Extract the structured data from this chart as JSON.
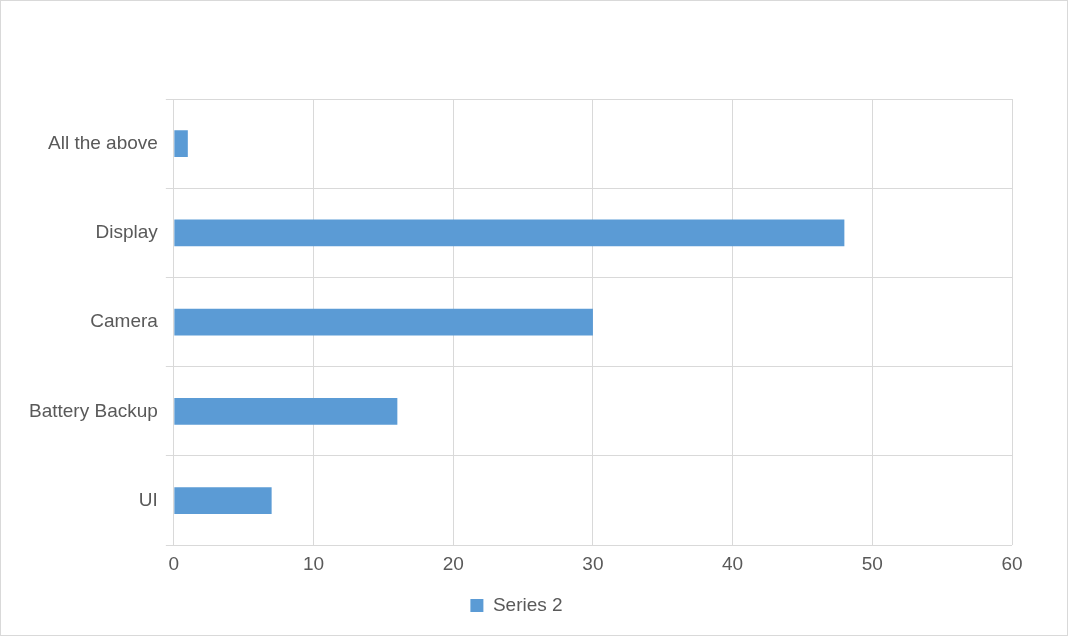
{
  "chart_data": {
    "type": "bar",
    "orientation": "horizontal",
    "categories": [
      "All the above",
      "Display",
      "Camera",
      "Battery Backup",
      "UI"
    ],
    "series": [
      {
        "name": "Series 2",
        "color": "#5b9bd5",
        "values": [
          1,
          48,
          30,
          16,
          7
        ]
      }
    ],
    "xlim": [
      0,
      60
    ],
    "xticks": [
      0,
      10,
      20,
      30,
      40,
      50,
      60
    ],
    "grid": true,
    "legend": "bottom"
  }
}
